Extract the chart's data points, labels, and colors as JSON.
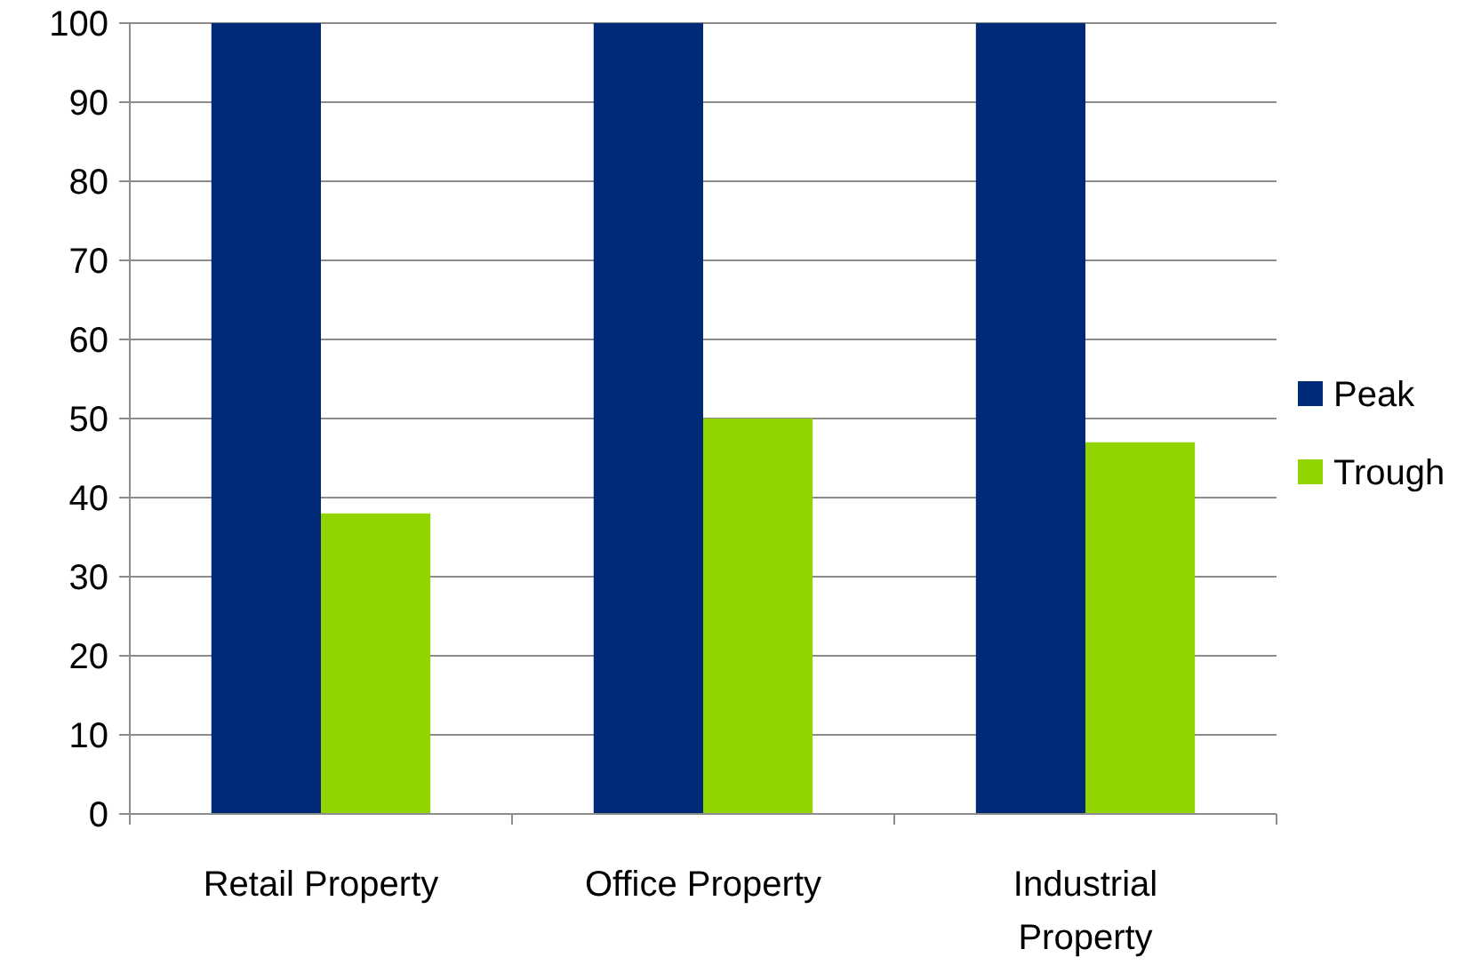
{
  "chart_data": {
    "type": "bar",
    "categories": [
      "Retail Property",
      "Office Property",
      "Industrial Property"
    ],
    "series": [
      {
        "name": "Peak",
        "color": "#002a78",
        "values": [
          100,
          100,
          100
        ]
      },
      {
        "name": "Trough",
        "color": "#92d400",
        "values": [
          38,
          50,
          47
        ]
      }
    ],
    "ylim": [
      0,
      100
    ],
    "yticks": [
      0,
      10,
      20,
      30,
      40,
      50,
      60,
      70,
      80,
      90,
      100
    ],
    "grid": "y",
    "legend": "right"
  }
}
